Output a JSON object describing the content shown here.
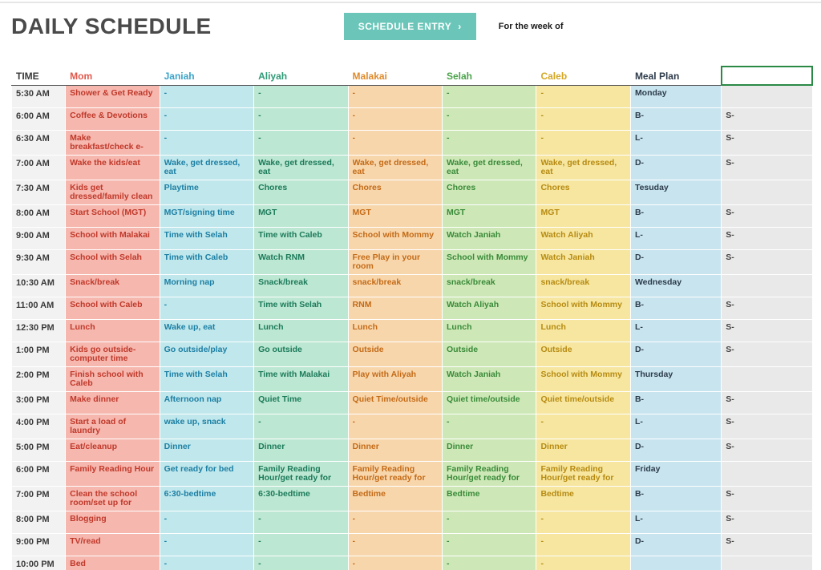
{
  "header": {
    "title": "DAILY SCHEDULE",
    "schedule_entry_label": "SCHEDULE ENTRY",
    "week_label": "For the week of"
  },
  "table": {
    "time_header": "TIME",
    "columns": [
      {
        "key": "mom",
        "label": "Mom",
        "header_color": "#e2574c",
        "bg": "#f6b7ae",
        "text": "#c0392b"
      },
      {
        "key": "janiah",
        "label": "Janiah",
        "header_color": "#3aa3c8",
        "bg": "#bfe7ec",
        "text": "#1d7fa3"
      },
      {
        "key": "aliyah",
        "label": "Aliyah",
        "header_color": "#2e9a77",
        "bg": "#bce7d2",
        "text": "#1c7a5b"
      },
      {
        "key": "malakai",
        "label": "Malakai",
        "header_color": "#e08a2a",
        "bg": "#f8d6ac",
        "text": "#c36b17"
      },
      {
        "key": "selah",
        "label": "Selah",
        "header_color": "#4aa24a",
        "bg": "#cde8b6",
        "text": "#3a8a3a"
      },
      {
        "key": "caleb",
        "label": "Caleb",
        "header_color": "#d4a724",
        "bg": "#f6e6a0",
        "text": "#b78b12"
      }
    ],
    "meal_header": {
      "label": "Meal Plan",
      "header_color": "#2d3b4a",
      "bg": "#c7e4ef",
      "text": "#2d3b4a"
    },
    "extra_col": {
      "bg": "#e9e9e9",
      "text": "#444444"
    },
    "times": [
      "5:30 AM",
      "6:00 AM",
      "6:30 AM",
      "7:00 AM",
      "7:30 AM",
      "8:00 AM",
      "9:00 AM",
      "9:30 AM",
      "10:30 AM",
      "11:00 AM",
      "12:30 PM",
      "1:00 PM",
      "2:00 PM",
      "3:00 PM",
      "4:00 PM",
      "5:00 PM",
      "6:00 PM",
      "7:00 PM",
      "8:00 PM",
      "9:00 PM",
      "10:00 PM"
    ],
    "rows": [
      {
        "mom": "Shower & Get Ready",
        "janiah": "-",
        "aliyah": "-",
        "malakai": "-",
        "selah": "-",
        "caleb": "-",
        "meal": "Monday",
        "extra": ""
      },
      {
        "mom": "Coffee & Devotions",
        "janiah": "-",
        "aliyah": "-",
        "malakai": "-",
        "selah": "-",
        "caleb": "-",
        "meal": "B-",
        "extra": "S-"
      },
      {
        "mom": "Make breakfast/check e-mails",
        "janiah": "-",
        "aliyah": "-",
        "malakai": "-",
        "selah": "-",
        "caleb": "-",
        "meal": "L-",
        "extra": "S-"
      },
      {
        "mom": "Wake the kids/eat",
        "janiah": "Wake, get dressed, eat",
        "aliyah": "Wake, get dressed, eat",
        "malakai": "Wake, get dressed, eat",
        "selah": "Wake, get dressed, eat",
        "caleb": "Wake, get dressed, eat",
        "meal": "D-",
        "extra": "S-"
      },
      {
        "mom": "Kids get dressed/family clean up time",
        "janiah": "Playtime",
        "aliyah": "Chores",
        "malakai": "Chores",
        "selah": "Chores",
        "caleb": "Chores",
        "meal": "Tesuday",
        "extra": ""
      },
      {
        "mom": "Start School (MGT)",
        "janiah": "MGT/signing time",
        "aliyah": "MGT",
        "malakai": "MGT",
        "selah": "MGT",
        "caleb": "MGT",
        "meal": "B-",
        "extra": "S-"
      },
      {
        "mom": "School with Malakai",
        "janiah": "Time with Selah",
        "aliyah": "Time with Caleb",
        "malakai": "School with Mommy",
        "selah": "Watch Janiah",
        "caleb": "Watch Aliyah",
        "meal": "L-",
        "extra": "S-"
      },
      {
        "mom": "School with Selah",
        "janiah": "Time with Caleb",
        "aliyah": "Watch RNM",
        "malakai": "Free Play in your room",
        "selah": "School with Mommy",
        "caleb": "Watch Janiah",
        "meal": "D-",
        "extra": "S-"
      },
      {
        "mom": "Snack/break",
        "janiah": "Morning nap",
        "aliyah": "Snack/break",
        "malakai": "snack/break",
        "selah": "snack/break",
        "caleb": "snack/break",
        "meal": "Wednesday",
        "extra": ""
      },
      {
        "mom": "School with Caleb",
        "janiah": "-",
        "aliyah": "Time with Selah",
        "malakai": "RNM",
        "selah": "Watch Aliyah",
        "caleb": "School with Mommy",
        "meal": "B-",
        "extra": "S-"
      },
      {
        "mom": "Lunch",
        "janiah": "Wake up, eat",
        "aliyah": "Lunch",
        "malakai": "Lunch",
        "selah": "Lunch",
        "caleb": "Lunch",
        "meal": "L-",
        "extra": "S-"
      },
      {
        "mom": "Kids go outside- computer time",
        "janiah": "Go outside/play",
        "aliyah": "Go outside",
        "malakai": "Outside",
        "selah": "Outside",
        "caleb": "Outside",
        "meal": "D-",
        "extra": "S-"
      },
      {
        "mom": "Finish school with Caleb",
        "janiah": "Time with Selah",
        "aliyah": "Time with Malakai",
        "malakai": "Play with Aliyah",
        "selah": "Watch Janiah",
        "caleb": "School with Mommy",
        "meal": "Thursday",
        "extra": ""
      },
      {
        "mom": "Make dinner",
        "janiah": "Afternoon nap",
        "aliyah": "Quiet Time",
        "malakai": "Quiet Time/outside",
        "selah": "Quiet time/outside",
        "caleb": "Quiet time/outside",
        "meal": "B-",
        "extra": "S-"
      },
      {
        "mom": "Start a load of laundry",
        "janiah": "wake up, snack",
        "aliyah": "-",
        "malakai": "-",
        "selah": "-",
        "caleb": "-",
        "meal": "L-",
        "extra": "S-"
      },
      {
        "mom": "Eat/cleanup",
        "janiah": "Dinner",
        "aliyah": "Dinner",
        "malakai": "Dinner",
        "selah": "Dinner",
        "caleb": "Dinner",
        "meal": "D-",
        "extra": "S-"
      },
      {
        "mom": "Family Reading Hour",
        "janiah": "Get ready for bed",
        "aliyah": "Family Reading Hour/get ready for bed",
        "malakai": "Family Reading Hour/get ready for bed",
        "selah": "Family Reading Hour/get ready for bed",
        "caleb": "Family Reading Hour/get ready for bed",
        "meal": "Friday",
        "extra": ""
      },
      {
        "mom": "Clean the school room/set up for tomorrow",
        "janiah": "6:30-bedtime",
        "aliyah": "6:30-bedtime",
        "malakai": "Bedtime",
        "selah": "Bedtime",
        "caleb": "Bedtime",
        "meal": "B-",
        "extra": "S-"
      },
      {
        "mom": "Blogging",
        "janiah": "-",
        "aliyah": "-",
        "malakai": "-",
        "selah": "-",
        "caleb": "-",
        "meal": "L-",
        "extra": "S-"
      },
      {
        "mom": "TV/read",
        "janiah": "-",
        "aliyah": "-",
        "malakai": "-",
        "selah": "-",
        "caleb": "-",
        "meal": "D-",
        "extra": "S-"
      },
      {
        "mom": "Bed",
        "janiah": "-",
        "aliyah": "-",
        "malakai": "-",
        "selah": "-",
        "caleb": "-",
        "meal": "",
        "extra": ""
      }
    ]
  }
}
